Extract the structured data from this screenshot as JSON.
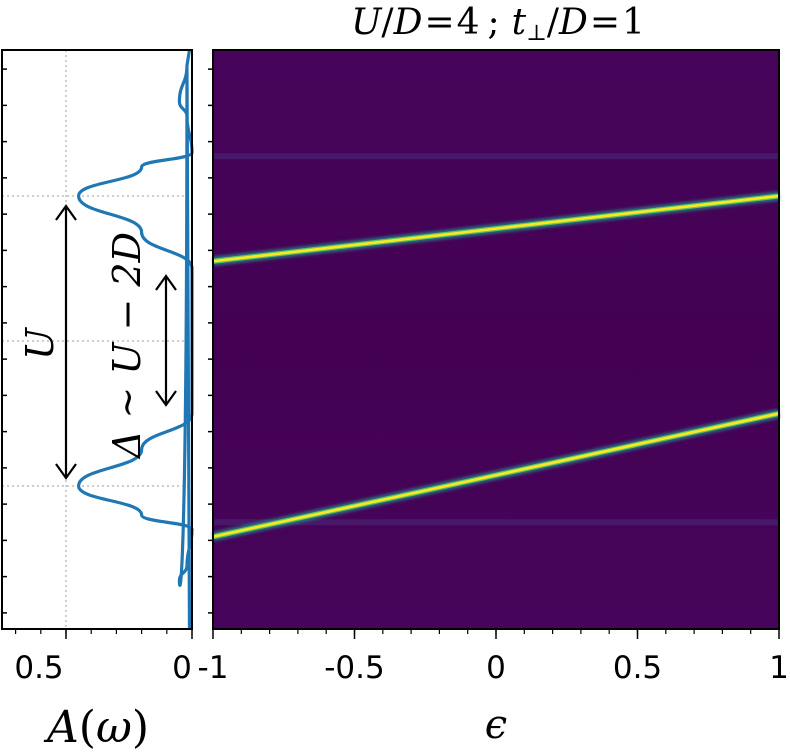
{
  "chart_data": [
    {
      "type": "line",
      "xlabel_parts": {
        "main": "A",
        "paren_open": "(",
        "omega": "ω",
        "paren_close": ")"
      },
      "x_ticks": [
        "0.5",
        "0"
      ],
      "x_inverted": true,
      "xlim": [
        1.0,
        0
      ],
      "grid": true,
      "line_color": "#1f77b4",
      "annotations": {
        "gap_U": "U",
        "gap_delta": "Δ ∼ U − 2D"
      },
      "series": [
        {
          "points": [
            {
              "omega": -3.8,
              "A": 0.02
            },
            {
              "omega": -3.3,
              "A": 0.05
            },
            {
              "omega": -3.1,
              "A": 0.02
            },
            {
              "omega": -2.6,
              "A": 0.0
            },
            {
              "omega": -2.4,
              "A": 0.2
            },
            {
              "omega": -2.0,
              "A": 0.45
            },
            {
              "omega": -1.5,
              "A": 0.2
            },
            {
              "omega": -1.0,
              "A": 0.0
            },
            {
              "omega": 1.0,
              "A": 0.0
            },
            {
              "omega": 1.5,
              "A": 0.2
            },
            {
              "omega": 2.0,
              "A": 0.45
            },
            {
              "omega": 2.4,
              "A": 0.2
            },
            {
              "omega": 2.6,
              "A": 0.0
            },
            {
              "omega": 3.1,
              "A": 0.02
            },
            {
              "omega": 3.3,
              "A": 0.05
            },
            {
              "omega": 3.8,
              "A": 0.02
            }
          ]
        }
      ]
    },
    {
      "type": "heatmap",
      "title_parts": {
        "U": "U",
        "slash1": "/",
        "D1": "D",
        "eq1": "=",
        "n1": "4",
        "sep": ";",
        "t": "t",
        "perp": "⊥",
        "slash2": "/",
        "D2": "D",
        "eq2": "=",
        "n2": "1"
      },
      "xlabel": "ϵ",
      "x_ticks": [
        "-1",
        "-0.5",
        "0",
        "0.5",
        "1"
      ],
      "xlim": [
        -1,
        1
      ],
      "colormap": "viridis",
      "background_color": "#440154",
      "band_color": "#fde725",
      "bands": [
        {
          "name": "upper",
          "omega_at_eps_min": 1.1,
          "omega_at_eps_max": 2.0
        },
        {
          "name": "lower",
          "omega_at_eps_min": -2.7,
          "omega_at_eps_max": -1.0
        }
      ],
      "faint_lines_omega": [
        2.55,
        -2.5
      ]
    }
  ]
}
